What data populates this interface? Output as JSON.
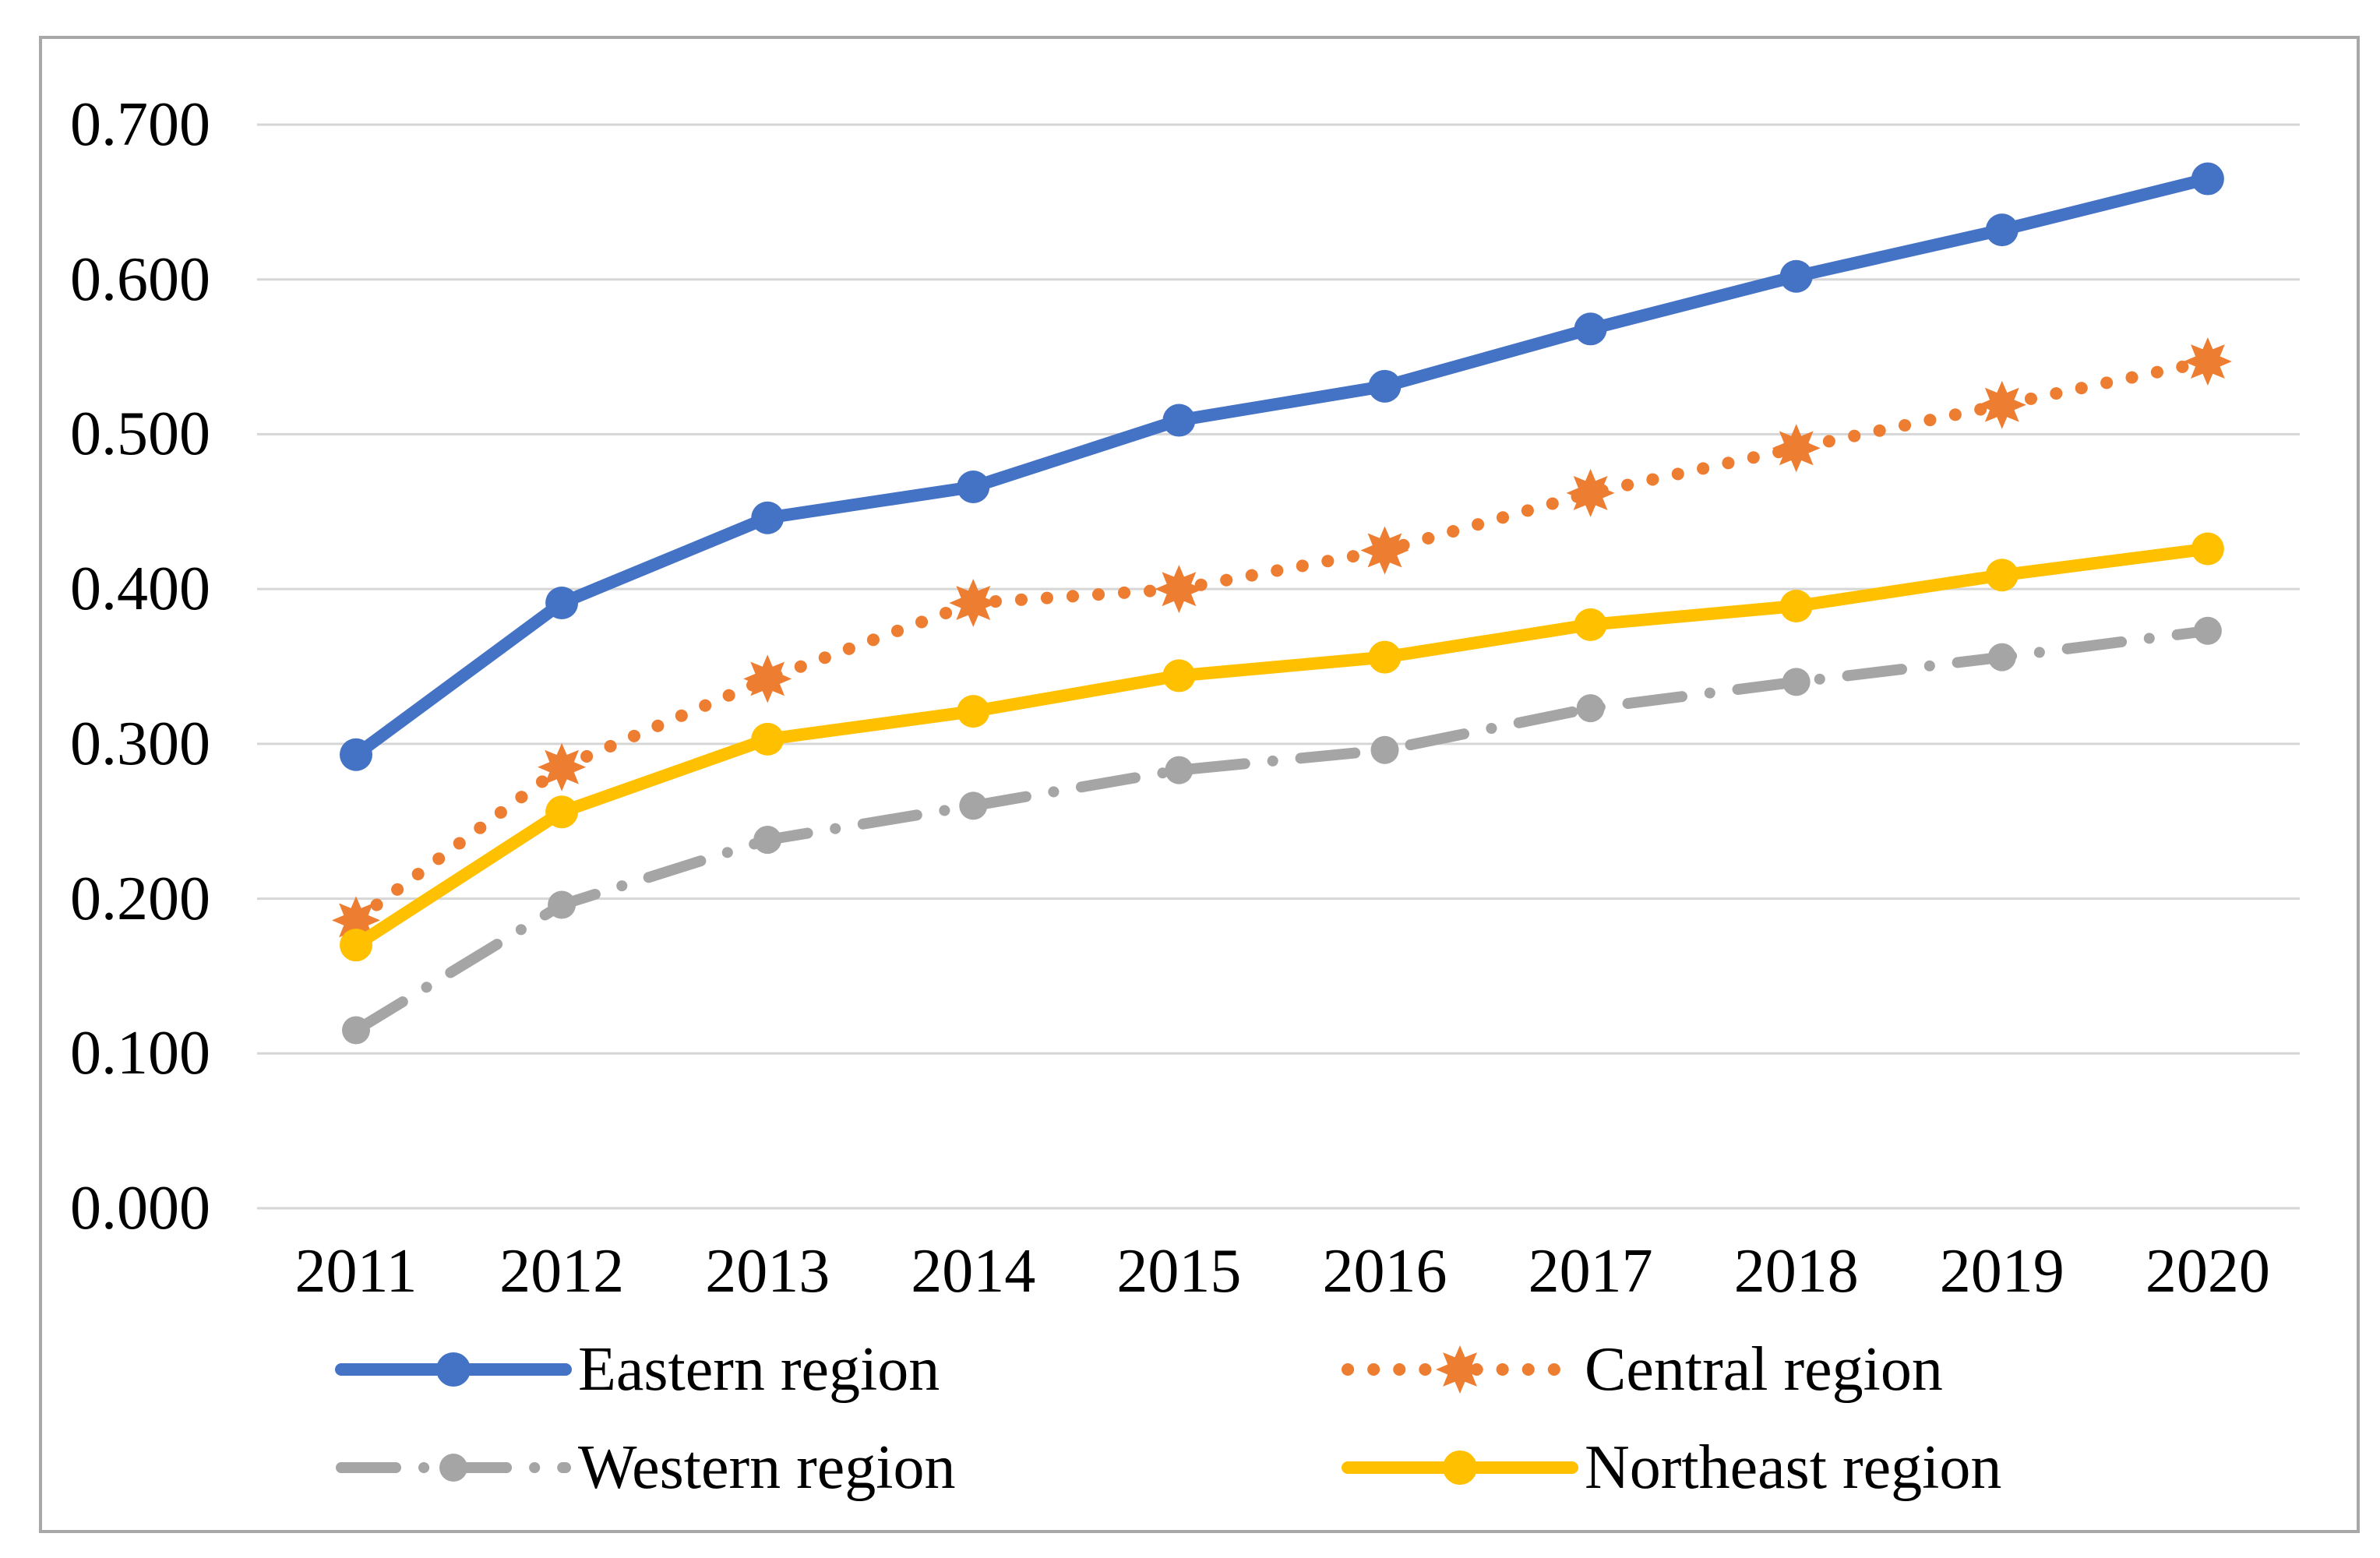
{
  "figure": {
    "background_color": "#ffffff",
    "frame_border_color": "#a8a8a8",
    "gridline_color": "#d6d6d6"
  },
  "chart_data": {
    "type": "line",
    "title": "",
    "xlabel": "",
    "ylabel": "",
    "x": [
      "2011",
      "2012",
      "2013",
      "2014",
      "2015",
      "2016",
      "2017",
      "2018",
      "2019",
      "2020"
    ],
    "series": [
      {
        "name": "Eastern region",
        "color": "#4472C4",
        "line_style": "solid",
        "marker": "circle",
        "values": [
          0.293,
          0.391,
          0.446,
          0.466,
          0.509,
          0.531,
          0.568,
          0.602,
          0.632,
          0.665
        ]
      },
      {
        "name": "Central region",
        "color": "#ED7D31",
        "line_style": "dotted",
        "marker": "star",
        "values": [
          0.186,
          0.285,
          0.342,
          0.391,
          0.4,
          0.425,
          0.462,
          0.491,
          0.519,
          0.547
        ]
      },
      {
        "name": "Western region",
        "color": "#A5A5A5",
        "line_style": "dash-dot",
        "marker": "circle-small",
        "values": [
          0.115,
          0.196,
          0.238,
          0.26,
          0.283,
          0.296,
          0.323,
          0.34,
          0.356,
          0.373
        ]
      },
      {
        "name": "Northeast region",
        "color": "#FFC000",
        "line_style": "solid",
        "marker": "circle",
        "values": [
          0.17,
          0.256,
          0.303,
          0.321,
          0.344,
          0.356,
          0.377,
          0.389,
          0.409,
          0.426
        ]
      }
    ],
    "ylim": [
      0.0,
      0.7
    ],
    "y_ticks": [
      "0.000",
      "0.100",
      "0.200",
      "0.300",
      "0.400",
      "0.500",
      "0.600",
      "0.700"
    ],
    "grid": true,
    "legend_position": "bottom"
  },
  "legend": {
    "display_order": [
      0,
      1,
      2,
      3
    ],
    "labels": [
      "Eastern region",
      "Central region",
      "Western region",
      "Northeast region"
    ]
  }
}
